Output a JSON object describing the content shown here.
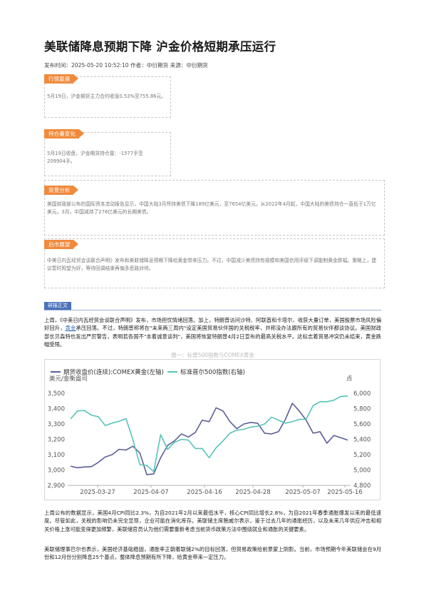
{
  "header": {
    "title": "美联储降息预期下降 沪金价格短期承压运行",
    "meta": "发布时间：2025-05-20 10:52:10 作者：中衍期货 来源：中衍期货"
  },
  "sections": [
    {
      "tag": "行情复盘",
      "text": "5月19日，沪金期货主力合约收涨0.53%至755.86元。"
    },
    {
      "tag": "持仓量变化",
      "text": "5月19日收盘，沪金期货持仓量：-1577手至209904手。"
    },
    {
      "tag": "背景分析",
      "text": "美国财政部公布的国际资本流动报告显示，中国大陆3月所持美债下降189亿美元，至7654亿美元，从2022年4月起，中国大陆的美债持仓一直低于1万亿美元。3月，中国减持了276亿美元的长期美债。"
    },
    {
      "tag": "后市展望",
      "text": "中美日内瓦经贸会谈联合声明》发布和美联储降息预期下降给黄金带来压力。不过，中国减少美债持有规模和美国信用评级下调能制黄金跌幅。策略上，建议暂时观望为好，等待回调结束再偏多思路对待。"
    }
  ],
  "main": {
    "section_label": "研报正文",
    "para1_a": "上周，《中美日内瓦经贸会谈联合声明》发布，市场担忧情绪回落。加上，特朗普访问沙特、阿联酋和卡塔尔，收获大量订单，美国股票市场风险偏好回升，",
    "para1_link": "黄金",
    "para1_b": "承压回落。不过，特朗普称将在\"未来两三周内\"设定美国贸易伙伴国的关税税率，并称没办法跟所有的贸易伙伴都谈协议。美国财政部长贝森特也发出严厉警告，表明若各国不\"本着诚意谈判\"，美国将恢复特朗普4月2日宣布的最高关税水平。这标志着贸易冲突仍未结束，黄金跌幅受限。",
    "para2": "上周公布的数据显示，美国4月CPI同比2.3%，为自2021年2月以来最低水平，核心CPI同比增长2.8%，为自2021年春季通胀爆发以来的最低速度。尽管如此，关税的影响仍未完全显现，企业可能在消化库存。美联储主席鲍威尔表示，鉴于过去几年的通胀经历，以及未来几年供应冲击和相关价格上涨可能变得更加频繁，美联储官员认为他们需要重新考虑当前货币政策方法中围绕就业和通胀的关键要素。",
    "para3": "美联储理事巴尔也表示，美国经济基础稳固，通胀率正朝着联储2%的目标回落，但贸易政策给前景蒙上阴影。当前，市场预期今年美联储会在9月份和12月份分别降息25个基点，整体降息预期有所下降，给黄金带来一定压力。"
  },
  "chart_data": {
    "type": "line",
    "title": "图一：标普500指数与COMEX黄金",
    "legend": [
      "期货收盘价(连续):COMEX黄金(左轴)",
      "标准普尔500指数(右轴)"
    ],
    "left_unit": "美元/金衡盎司",
    "right_unit": "点",
    "ylim_left": [
      2900,
      3500
    ],
    "ylim_right": [
      4800,
      6000
    ],
    "left_ticks": [
      "2,900",
      "3,000",
      "3,100",
      "3,200",
      "3,300",
      "3,400",
      "3,500"
    ],
    "right_ticks": [
      "4,800",
      "5,000",
      "5,200",
      "5,400",
      "5,600",
      "5,800",
      "6,000"
    ],
    "x_ticks": [
      "2025-03-27",
      "2025-04-07",
      "2025-04-16",
      "2025-04-28",
      "2025-05-07",
      "2025-05-16"
    ],
    "dates": [
      "03-21",
      "03-24",
      "03-25",
      "03-26",
      "03-27",
      "03-28",
      "03-31",
      "04-01",
      "04-02",
      "04-03",
      "04-04",
      "04-07",
      "04-08",
      "04-09",
      "04-10",
      "04-11",
      "04-14",
      "04-15",
      "04-16",
      "04-17",
      "04-21",
      "04-22",
      "04-23",
      "04-24",
      "04-25",
      "04-28",
      "04-29",
      "04-30",
      "05-01",
      "05-02",
      "05-05",
      "05-06",
      "05-07",
      "05-08",
      "05-09",
      "05-12",
      "05-13",
      "05-14",
      "05-15",
      "05-16",
      "05-19"
    ],
    "series": [
      {
        "name": "期货收盘价(连续):COMEX黄金(左轴)",
        "color": "#5b5f97",
        "values": [
          3025,
          3015,
          3020,
          3022,
          3050,
          3085,
          3100,
          3135,
          3130,
          3155,
          3110,
          2970,
          2975,
          3080,
          3160,
          3190,
          3235,
          3215,
          3245,
          3325,
          3315,
          3405,
          3385,
          3315,
          3270,
          3300,
          3310,
          3305,
          3240,
          3235,
          3250,
          3330,
          3435,
          3385,
          3325,
          3240,
          3250,
          3175,
          3225,
          3210,
          3195
        ]
      },
      {
        "name": "标准普尔500指数(右轴)",
        "color": "#57c4b7",
        "values": [
          5665,
          5770,
          5775,
          5715,
          5695,
          5580,
          5610,
          5635,
          5670,
          5395,
          5070,
          5060,
          4980,
          5460,
          5270,
          5360,
          5400,
          5390,
          5280,
          5280,
          5160,
          5290,
          5380,
          5480,
          5520,
          5530,
          5560,
          5570,
          5600,
          5690,
          5650,
          5610,
          5630,
          5660,
          5660,
          5840,
          5890,
          5890,
          5910,
          5960,
          5965
        ]
      }
    ]
  }
}
